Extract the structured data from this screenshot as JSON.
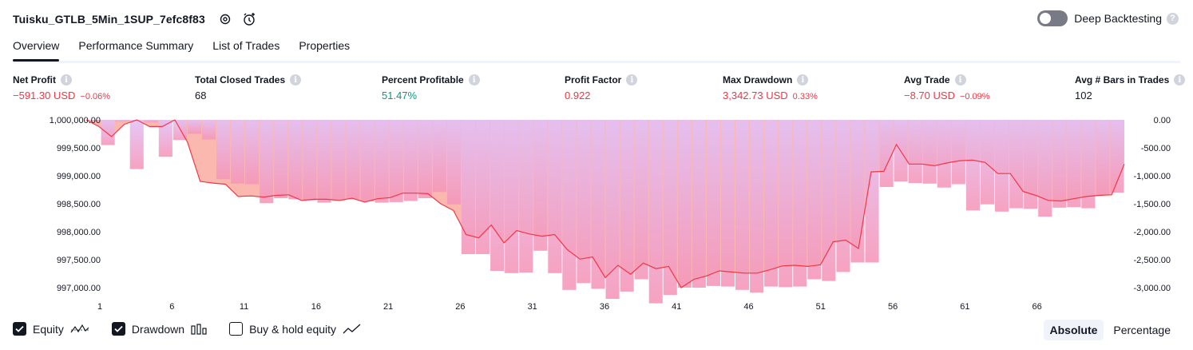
{
  "header": {
    "title": "Tuisku_GTLB_5Min_1SUP_7efc8f83",
    "deep_backtesting_label": "Deep Backtesting",
    "deep_backtesting_enabled": false,
    "help_glyph": "?"
  },
  "tabs": [
    {
      "label": "Overview",
      "active": true
    },
    {
      "label": "Performance Summary",
      "active": false
    },
    {
      "label": "List of Trades",
      "active": false
    },
    {
      "label": "Properties",
      "active": false
    }
  ],
  "metrics": {
    "net_profit": {
      "label": "Net Profit",
      "value": "−591.30 USD",
      "sub": "−0.06%"
    },
    "total_closed_trades": {
      "label": "Total Closed Trades",
      "value": "68"
    },
    "percent_profitable": {
      "label": "Percent Profitable",
      "value": "51.47%"
    },
    "profit_factor": {
      "label": "Profit Factor",
      "value": "0.922"
    },
    "max_drawdown": {
      "label": "Max Drawdown",
      "value": "3,342.73 USD",
      "sub": "0.33%"
    },
    "avg_trade": {
      "label": "Avg Trade",
      "value": "−8.70 USD",
      "sub": "−0.09%"
    },
    "avg_bars": {
      "label": "Avg # Bars in Trades",
      "value": "102"
    },
    "info_glyph": "i"
  },
  "colors": {
    "equity_line": "#f23645",
    "equity_line_up": "#089981",
    "drawdown_bar": "#d9b8f5",
    "fill_pink": "#f596b8",
    "fill_salmon": "#fbb0a6",
    "negative": "#f23645",
    "positive": "#089981"
  },
  "chart_data": {
    "type": "bar+line",
    "x_ticks": [
      "1",
      "6",
      "11",
      "16",
      "21",
      "26",
      "31",
      "36",
      "41",
      "46",
      "51",
      "56",
      "61",
      "66"
    ],
    "y_left_ticks": [
      "1,000,000.00",
      "999,500.00",
      "999,000.00",
      "998,500.00",
      "998,000.00",
      "997,500.00",
      "997,000.00"
    ],
    "y_right_ticks": [
      "0.00",
      "-500.00",
      "-1,000.00",
      "-1,500.00",
      "-2,000.00",
      "-2,500.00",
      "-3,000.00"
    ],
    "y_left_range": [
      997000,
      1000000
    ],
    "y_right_range": [
      -3300,
      0
    ],
    "series": [
      {
        "name": "Equity",
        "type": "line",
        "values": [
          1000000,
          999880,
          999700,
          999920,
          1000000,
          999880,
          999880,
          1000000,
          999600,
          998900,
          998870,
          998850,
          998630,
          998640,
          998620,
          998650,
          998660,
          998560,
          998580,
          998580,
          998560,
          998600,
          998530,
          998590,
          998610,
          998690,
          998690,
          998680,
          998500,
          998380,
          997950,
          997890,
          998120,
          997800,
          998020,
          997960,
          997920,
          997950,
          997680,
          997510,
          997550,
          997180,
          997400,
          997240,
          997440,
          997340,
          997380,
          997000,
          997150,
          997210,
          997300,
          997280,
          997260,
          997260,
          997320,
          997390,
          997400,
          997380,
          997410,
          997820,
          997850,
          997700,
          999070,
          999080,
          999560,
          999210,
          999210,
          999180,
          999230,
          999270,
          999280,
          999240,
          999040,
          999040,
          998720,
          998650,
          998560,
          998550,
          998590,
          998630,
          998650,
          998660,
          999210
        ]
      },
      {
        "name": "Drawdown",
        "type": "bar",
        "values": [
          -10,
          -450,
          -30,
          -880,
          -40,
          -660,
          -360,
          -250,
          -350,
          -1060,
          -1140,
          -1150,
          -1490,
          -1400,
          -1420,
          -1440,
          -1480,
          -1440,
          -1420,
          -1460,
          -1480,
          -1470,
          -1450,
          -1400,
          -1290,
          -1510,
          -2400,
          -2400,
          -2700,
          -2740,
          -2730,
          -2340,
          -2740,
          -3040,
          -2920,
          -3020,
          -3200,
          -3070,
          -2850,
          -3280,
          -3130,
          -3000,
          -3000,
          -2970,
          -2980,
          -3040,
          -3090,
          -2980,
          -2990,
          -2980,
          -2850,
          -2880,
          -2720,
          -2550,
          -2550,
          -1200,
          -1100,
          -1130,
          -1140,
          -1210,
          -1150,
          -1620,
          -1510,
          -1640,
          -1580,
          -1590,
          -1730,
          -1570,
          -1560,
          -1580,
          -1350,
          -1300
        ]
      },
      {
        "name": "Buy & hold equity",
        "type": "line",
        "visible": false,
        "values": []
      }
    ]
  },
  "legend": [
    {
      "label": "Equity",
      "checked": true,
      "icon": "equity-line-icon"
    },
    {
      "label": "Drawdown",
      "checked": true,
      "icon": "drawdown-bars-icon"
    },
    {
      "label": "Buy & hold equity",
      "checked": false,
      "icon": "buy-hold-line-icon"
    }
  ],
  "modes": [
    {
      "label": "Absolute",
      "active": true
    },
    {
      "label": "Percentage",
      "active": false
    }
  ]
}
